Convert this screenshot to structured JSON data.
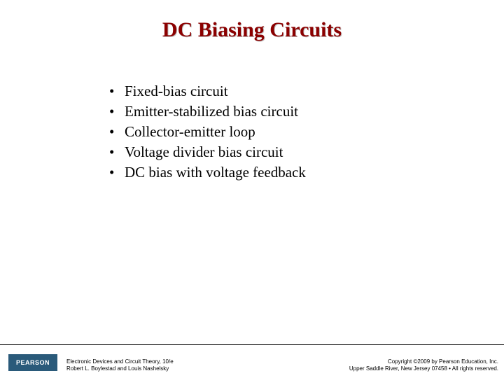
{
  "title": {
    "text": "DC Biasing Circuits",
    "fontsize": 30,
    "color": "#8b0000",
    "shadow_color": "#c0c0c0"
  },
  "bullets": {
    "items": [
      "Fixed-bias circuit",
      "Emitter-stabilized bias circuit",
      "Collector-emitter loop",
      "Voltage divider bias circuit",
      "DC bias with voltage feedback"
    ],
    "fontsize": 21,
    "color": "#000000",
    "bullet_char": "•"
  },
  "footer": {
    "logo_text": "PEARSON",
    "logo_bg": "#2a5a7a",
    "left_line1": "Electronic Devices and Circuit Theory, 10/e",
    "left_line2": "Robert L. Boylestad and Louis Nashelsky",
    "right_line1": "Copyright ©2009 by Pearson Education, Inc.",
    "right_line2": "Upper Saddle River, New Jersey 07458 • All rights reserved.",
    "credits_fontsize": 8
  },
  "background_color": "#ffffff"
}
